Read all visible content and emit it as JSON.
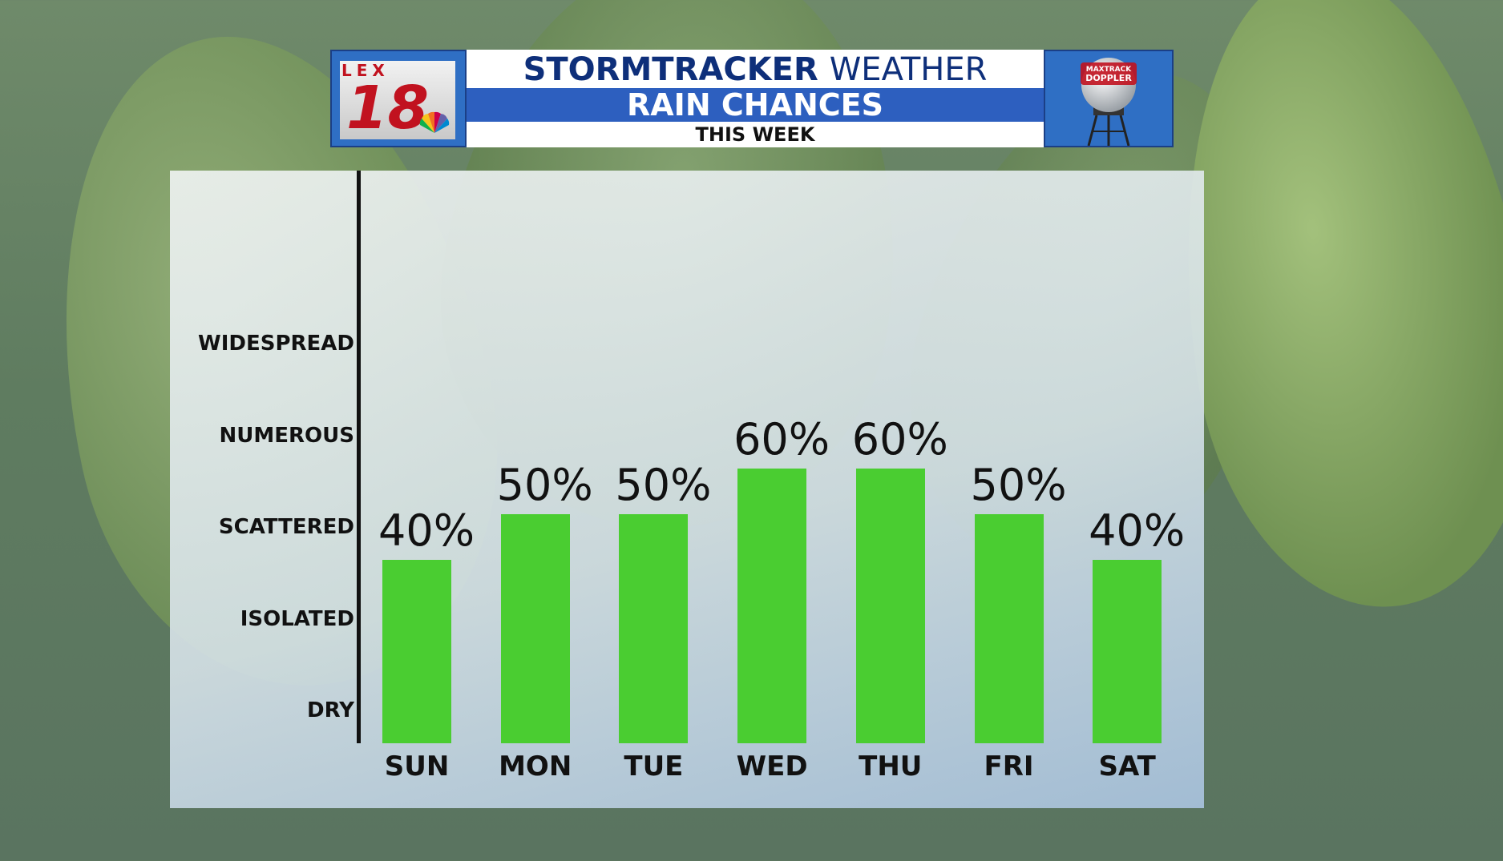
{
  "header": {
    "logo_letters": "LEX",
    "logo_number": "18",
    "title_bold": "STORMTRACKER",
    "title_thin": "WEATHER",
    "subtitle": "RAIN CHANCES",
    "period": "THIS WEEK",
    "doppler_line1": "MAXTRACK",
    "doppler_line2": "DOPPLER"
  },
  "colors": {
    "bar": "#4acd31",
    "banner_blue": "#2d5fbf",
    "title_navy": "#0e2f7a",
    "logo_red": "#c1121f"
  },
  "chart_data": {
    "type": "bar",
    "title": "RAIN CHANCES",
    "categories": [
      "SUN",
      "MON",
      "TUE",
      "WED",
      "THU",
      "FRI",
      "SAT"
    ],
    "values": [
      40,
      50,
      50,
      60,
      60,
      50,
      40
    ],
    "value_labels": [
      "40%",
      "50%",
      "50%",
      "60%",
      "60%",
      "50%",
      "40%"
    ],
    "unit": "%",
    "y_category_labels": [
      "DRY",
      "ISOLATED",
      "SCATTERED",
      "NUMEROUS",
      "WIDESPREAD"
    ],
    "y_category_values": [
      0,
      20,
      40,
      60,
      80
    ],
    "ylim": [
      0,
      100
    ],
    "grid": false,
    "legend": "none"
  }
}
